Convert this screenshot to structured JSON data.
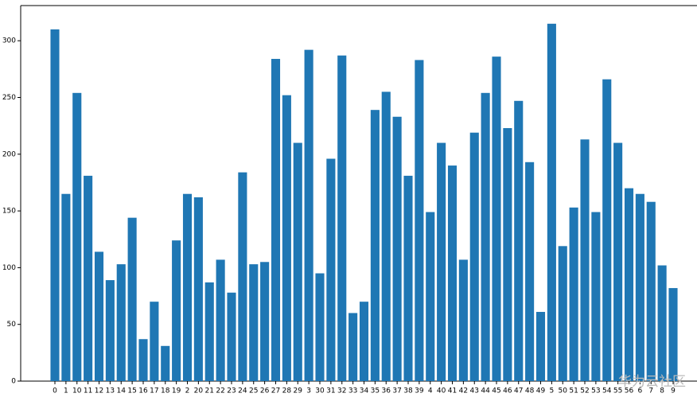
{
  "chart_data": {
    "type": "bar",
    "categories": [
      "0",
      "1",
      "10",
      "11",
      "12",
      "13",
      "14",
      "15",
      "16",
      "17",
      "18",
      "19",
      "2",
      "20",
      "21",
      "22",
      "23",
      "24",
      "25",
      "26",
      "27",
      "28",
      "29",
      "3",
      "30",
      "31",
      "32",
      "33",
      "34",
      "35",
      "36",
      "37",
      "38",
      "39",
      "4",
      "40",
      "41",
      "42",
      "43",
      "44",
      "45",
      "46",
      "47",
      "48",
      "49",
      "5",
      "50",
      "51",
      "52",
      "53",
      "54",
      "55",
      "56",
      "6",
      "7",
      "8",
      "9"
    ],
    "values": [
      310,
      165,
      254,
      181,
      114,
      89,
      103,
      144,
      37,
      70,
      31,
      124,
      165,
      162,
      87,
      107,
      78,
      184,
      103,
      105,
      284,
      252,
      210,
      292,
      95,
      196,
      287,
      60,
      70,
      239,
      255,
      233,
      181,
      283,
      149,
      210,
      190,
      107,
      219,
      254,
      286,
      223,
      247,
      193,
      61,
      315,
      119,
      153,
      213,
      149,
      266,
      210,
      170,
      165,
      158,
      102,
      82
    ],
    "color": "#1f77b4",
    "ylim": [
      0,
      331
    ],
    "yticks": [
      0,
      50,
      100,
      150,
      200,
      250,
      300
    ],
    "watermark": "华为云社区"
  }
}
